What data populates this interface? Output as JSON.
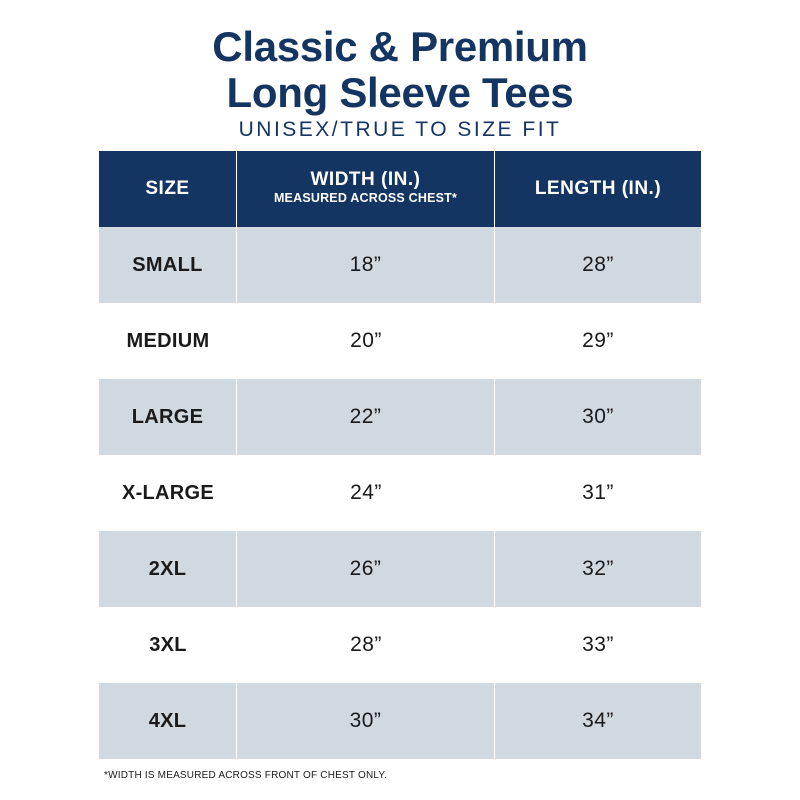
{
  "title": {
    "line1": "Classic & Premium",
    "line2": "Long Sleeve Tees"
  },
  "subtitle": "UNISEX/TRUE TO SIZE FIT",
  "table": {
    "headers": {
      "size": "SIZE",
      "width": "WIDTH (IN.)",
      "width_note": "MEASURED ACROSS CHEST*",
      "length": "LENGTH (IN.)"
    },
    "rows": [
      {
        "size": "SMALL",
        "width": "18”",
        "length": "28”"
      },
      {
        "size": "MEDIUM",
        "width": "20”",
        "length": "29”"
      },
      {
        "size": "LARGE",
        "width": "22”",
        "length": "30”"
      },
      {
        "size": "X-LARGE",
        "width": "24”",
        "length": "31”"
      },
      {
        "size": "2XL",
        "width": "26”",
        "length": "32”"
      },
      {
        "size": "3XL",
        "width": "28”",
        "length": "33”"
      },
      {
        "size": "4XL",
        "width": "30”",
        "length": "34”"
      }
    ]
  },
  "footnote": "*WIDTH IS MEASURED ACROSS FRONT OF CHEST ONLY.",
  "colors": {
    "brand_navy": "#143461",
    "row_shade": "#d1d9e0"
  }
}
